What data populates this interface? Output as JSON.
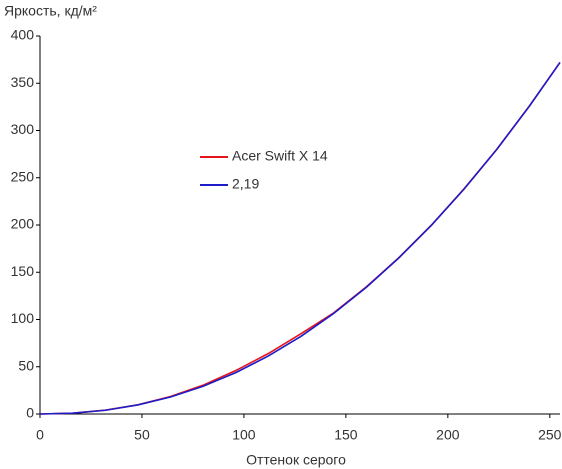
{
  "chart_data": {
    "type": "line",
    "y_label": "Яркость, кд/м²",
    "x_label": "Оттенок серого",
    "x": [
      0,
      16,
      32,
      48,
      64,
      80,
      96,
      112,
      128,
      144,
      160,
      176,
      192,
      208,
      224,
      240,
      255
    ],
    "series": [
      {
        "name": "Acer Swift X 14",
        "color": "#e8141c",
        "values": [
          0,
          0.9,
          4.0,
          9.8,
          18.5,
          30.5,
          46,
          64,
          85,
          107,
          134.5,
          165.5,
          200,
          238.5,
          280,
          326,
          372
        ]
      },
      {
        "name": "2,19",
        "color": "#1c1cc8",
        "values": [
          0,
          0.86,
          3.95,
          9.59,
          18.0,
          29.4,
          43.8,
          61.4,
          82.2,
          106.4,
          134.0,
          165.2,
          199.8,
          238.1,
          280.0,
          325.8,
          372
        ]
      }
    ],
    "xlim": [
      0,
      255
    ],
    "xticks": [
      0,
      50,
      100,
      150,
      200,
      250
    ],
    "ylim": [
      0,
      400
    ],
    "yticks": [
      0,
      50,
      100,
      150,
      200,
      250,
      300,
      350,
      400
    ],
    "grid": false
  }
}
